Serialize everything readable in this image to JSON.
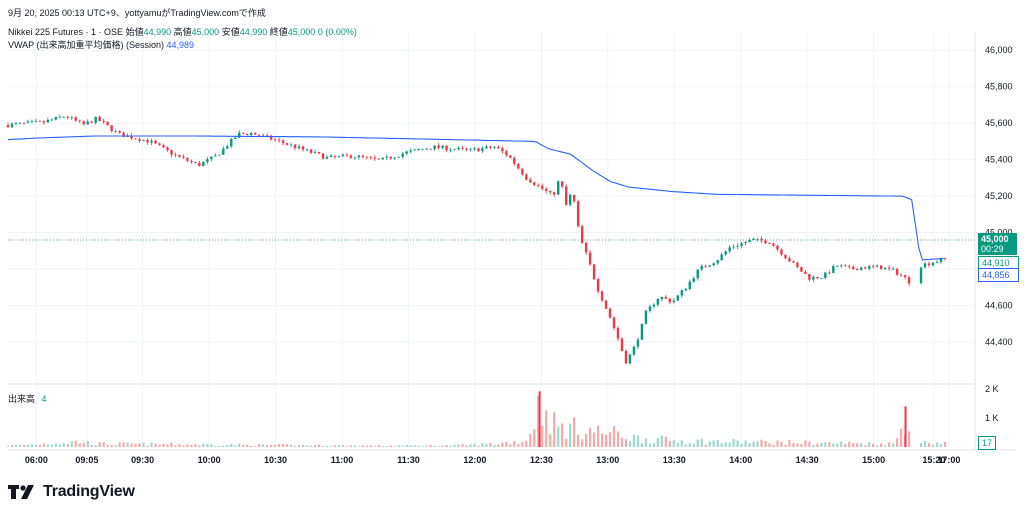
{
  "header": {
    "line1": "9月 20, 2025 00:13 UTC+9、yottyamuがTradingView.comで作成",
    "symbol": "Nikkei 225 Futures · 1 · OSE",
    "o_label": "始値",
    "o_val": "44,990",
    "h_label": "高値",
    "h_val": "45,000",
    "l_label": "安値",
    "l_val": "44,990",
    "c_label": "終値",
    "c_val": "45,000",
    "chg": "0 (0.00%)",
    "vwap_label": "VWAP (出来高加重平均価格) (Session)",
    "vwap_val": "44,989",
    "vol_label": "出来高",
    "vol_val": "4"
  },
  "price_tags": {
    "last": "45,000",
    "countdown": "00:29",
    "high_marker": "44,910",
    "vwap_marker": "44,856",
    "vol_last": "17"
  },
  "logo": {
    "text": "TradingView"
  },
  "colors": {
    "up": "#089981",
    "down": "#f23645",
    "vwap": "#2962ff",
    "vol_up": "#9fd8cf",
    "vol_down": "#f7a9a7"
  },
  "chart_data": {
    "type": "candlestick",
    "price_axis": {
      "ticks": [
        44400,
        44600,
        44800,
        45000,
        45200,
        45400,
        45600,
        45800,
        46000
      ],
      "labels": [
        "44,400",
        "44,600",
        "44,800",
        "45,000",
        "45,200",
        "45,400",
        "45,600",
        "45,800",
        "46,000"
      ],
      "range": [
        44170,
        46100
      ]
    },
    "volume_axis": {
      "labels": [
        "2 K",
        "1 K"
      ],
      "values": [
        2000,
        1000
      ]
    },
    "time_labels": [
      "06:00",
      "09:05",
      "09:30",
      "10:00",
      "10:30",
      "11:00",
      "11:30",
      "12:00",
      "12:30",
      "13:00",
      "13:30",
      "14:00",
      "14:30",
      "15:00",
      "15:20",
      "17:00"
    ],
    "price_path": [
      [
        0,
        45590
      ],
      [
        0.04,
        45605
      ],
      [
        0.065,
        45640
      ],
      [
        0.085,
        45590
      ],
      [
        0.1,
        45625
      ],
      [
        0.125,
        45540
      ],
      [
        0.16,
        45500
      ],
      [
        0.19,
        45420
      ],
      [
        0.215,
        45370
      ],
      [
        0.235,
        45420
      ],
      [
        0.26,
        45540
      ],
      [
        0.275,
        45545
      ],
      [
        0.3,
        45510
      ],
      [
        0.33,
        45460
      ],
      [
        0.36,
        45410
      ],
      [
        0.39,
        45420
      ],
      [
        0.42,
        45395
      ],
      [
        0.45,
        45440
      ],
      [
        0.48,
        45470
      ],
      [
        0.5,
        45460
      ],
      [
        0.52,
        45450
      ],
      [
        0.55,
        45470
      ],
      [
        0.565,
        45420
      ],
      [
        0.585,
        45300
      ],
      [
        0.6,
        45250
      ],
      [
        0.615,
        45200
      ],
      [
        0.623,
        45300
      ],
      [
        0.63,
        45150
      ],
      [
        0.637,
        45230
      ],
      [
        0.645,
        44980
      ],
      [
        0.655,
        44850
      ],
      [
        0.665,
        44700
      ],
      [
        0.68,
        44530
      ],
      [
        0.69,
        44400
      ],
      [
        0.697,
        44290
      ],
      [
        0.705,
        44350
      ],
      [
        0.713,
        44450
      ],
      [
        0.72,
        44560
      ],
      [
        0.735,
        44650
      ],
      [
        0.75,
        44620
      ],
      [
        0.765,
        44700
      ],
      [
        0.78,
        44800
      ],
      [
        0.8,
        44850
      ],
      [
        0.815,
        44920
      ],
      [
        0.84,
        44960
      ],
      [
        0.86,
        44950
      ],
      [
        0.875,
        44880
      ],
      [
        0.89,
        44810
      ],
      [
        0.905,
        44750
      ],
      [
        0.92,
        44760
      ],
      [
        0.935,
        44820
      ],
      [
        0.95,
        44800
      ],
      [
        0.965,
        44810
      ],
      [
        0.985,
        44810
      ],
      [
        1.0,
        44790
      ],
      [
        1.01,
        44760
      ],
      [
        1.02,
        44720
      ],
      [
        1.03,
        44820
      ],
      [
        1.045,
        44840
      ],
      [
        1.06,
        44860
      ]
    ],
    "vwap_path": [
      [
        0,
        45510
      ],
      [
        0.04,
        45520
      ],
      [
        0.1,
        45530
      ],
      [
        0.2,
        45530
      ],
      [
        0.35,
        45525
      ],
      [
        0.5,
        45510
      ],
      [
        0.595,
        45500
      ],
      [
        0.61,
        45460
      ],
      [
        0.635,
        45430
      ],
      [
        0.66,
        45340
      ],
      [
        0.68,
        45280
      ],
      [
        0.7,
        45250
      ],
      [
        0.75,
        45225
      ],
      [
        0.8,
        45210
      ],
      [
        0.9,
        45205
      ],
      [
        1.01,
        45200
      ],
      [
        1.02,
        45180
      ],
      [
        1.03,
        44850
      ],
      [
        1.06,
        44860
      ]
    ],
    "volume_profile": [
      [
        0,
        60
      ],
      [
        0.045,
        160
      ],
      [
        0.08,
        250
      ],
      [
        0.1,
        150
      ],
      [
        0.2,
        120
      ],
      [
        0.3,
        90
      ],
      [
        0.4,
        60
      ],
      [
        0.5,
        70
      ],
      [
        0.55,
        150
      ],
      [
        0.585,
        300
      ],
      [
        0.6,
        1920
      ],
      [
        0.62,
        900
      ],
      [
        0.645,
        850
      ],
      [
        0.665,
        700
      ],
      [
        0.69,
        600
      ],
      [
        0.71,
        400
      ],
      [
        0.75,
        300
      ],
      [
        0.8,
        250
      ],
      [
        0.9,
        200
      ],
      [
        1.0,
        150
      ],
      [
        1.005,
        500
      ],
      [
        1.013,
        1400
      ],
      [
        1.03,
        200
      ]
    ]
  }
}
